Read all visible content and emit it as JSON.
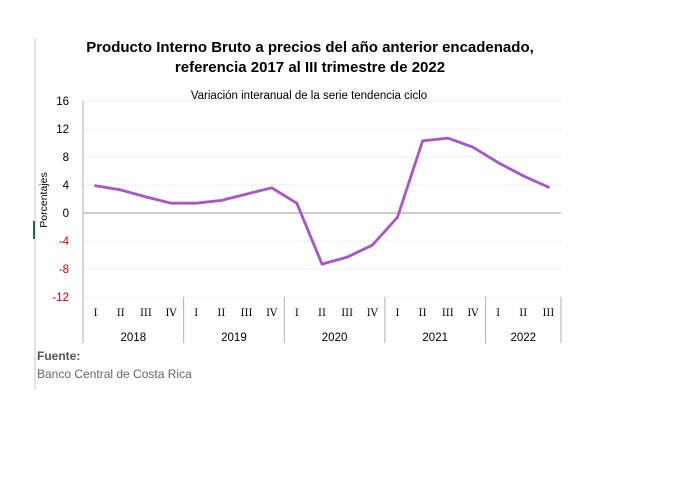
{
  "chart_data": {
    "type": "line",
    "title_line1": "Producto Interno Bruto a precios del año anterior encadenado,",
    "title_line2": "referencia 2017 al III trimestre de 2022",
    "subtitle": "Variación interanual de la serie tendencia ciclo",
    "ylabel": "Porcentajes",
    "ylim": [
      -12,
      16
    ],
    "yticks": [
      16,
      12,
      8,
      4,
      0,
      -4,
      -8,
      -12
    ],
    "negative_tick_color": "#cc0000",
    "line_color": "#a855c8",
    "grid": true,
    "quarters": [
      "I",
      "II",
      "III",
      "IV",
      "I",
      "II",
      "III",
      "IV",
      "I",
      "II",
      "III",
      "IV",
      "I",
      "II",
      "III",
      "IV",
      "I",
      "II",
      "III"
    ],
    "years": [
      {
        "label": "2018",
        "count": 4
      },
      {
        "label": "2019",
        "count": 4
      },
      {
        "label": "2020",
        "count": 4
      },
      {
        "label": "2021",
        "count": 4
      },
      {
        "label": "2022",
        "count": 3
      }
    ],
    "series": [
      {
        "values": [
          3.9,
          3.3,
          2.3,
          1.4,
          1.4,
          1.8,
          2.7,
          3.6,
          1.4,
          -7.3,
          -6.3,
          -4.6,
          -0.6,
          10.3,
          10.7,
          9.4,
          7.2,
          5.3,
          3.7
        ]
      }
    ]
  },
  "source": {
    "label": "Fuente:",
    "text": "Banco Central de Costa Rica"
  }
}
